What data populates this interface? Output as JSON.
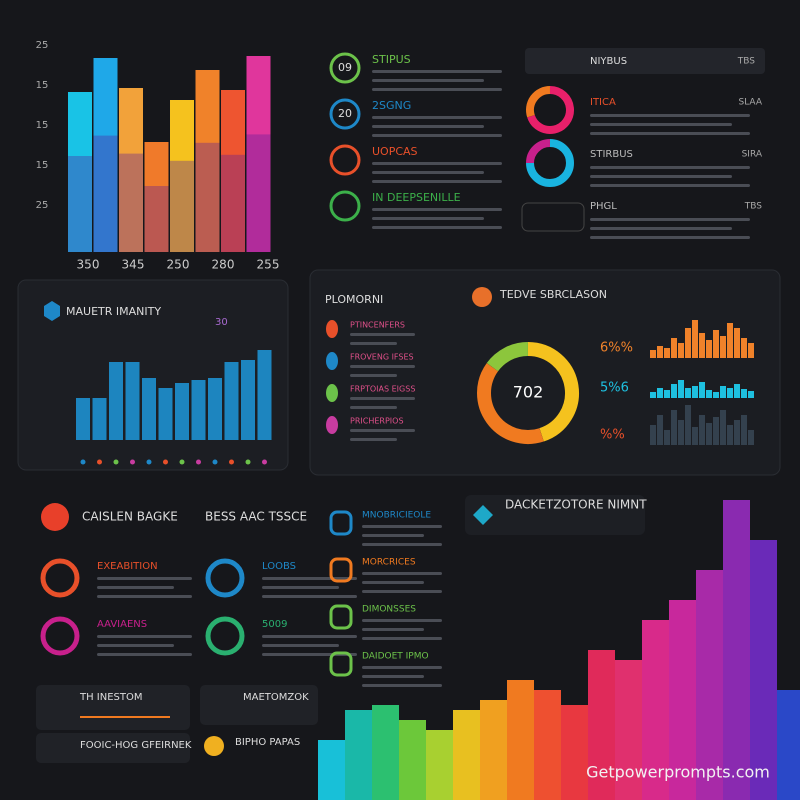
{
  "top_chart": {
    "y_labels": [
      "25",
      "15",
      "15",
      "15",
      "25"
    ],
    "x_labels": [
      "350",
      "345",
      "250",
      "280",
      "255"
    ],
    "values": [
      80,
      97,
      82,
      55,
      76,
      91,
      81,
      98
    ],
    "colors": [
      "#19c3e6",
      "#1fa8e8",
      "#f2a23a",
      "#f07a2a",
      "#f5c21e",
      "#f0822a",
      "#ee5530",
      "#e0369c"
    ]
  },
  "top_list": {
    "items": [
      {
        "badge": "09",
        "title": "STIPUS",
        "color": "#6cc24a"
      },
      {
        "badge": "20",
        "title": "2SGNG",
        "color": "#1e88c8"
      },
      {
        "title": "UOPCAS",
        "color": "#e8502a"
      },
      {
        "title": "IN DEEPSENILLE",
        "color": "#3cb04a"
      }
    ]
  },
  "status_panel": {
    "title": "NIYBUS",
    "code": "TBS",
    "rows": [
      {
        "left": "ITICA",
        "right": "SLAA"
      },
      {
        "left": "STIRBUS",
        "right": "SIRA"
      },
      {
        "left": "PHGL",
        "right": "TBS"
      }
    ],
    "donuts": [
      {
        "values": [
          70,
          30
        ],
        "colors": [
          "#e8206a",
          "#f07a20"
        ]
      },
      {
        "values": [
          75,
          25
        ],
        "colors": [
          "#19b4e0",
          "#c8208c"
        ]
      }
    ]
  },
  "blue_chart": {
    "title": "MAUETR IMANITY",
    "code": "30",
    "values": [
      42,
      42,
      78,
      78,
      62,
      52,
      57,
      60,
      62,
      78,
      80,
      90
    ],
    "color": "#1e90d0"
  },
  "progress_panel": {
    "title": "PLOMORNI",
    "items": [
      {
        "title": "PTINCENFERS",
        "color": "#e8502a"
      },
      {
        "title": "FROVENG IFSES",
        "color": "#1e88c8"
      },
      {
        "title": "FRPTOIAS EIGSS",
        "color": "#6cc24a"
      },
      {
        "title": "PRICHERPIOS",
        "color": "#c83ca0"
      }
    ]
  },
  "donut_panel": {
    "title": "TEDVE SBRCLASON",
    "center": "702",
    "values": [
      45,
      40,
      15
    ],
    "colors": [
      "#f5c21e",
      "#f07a20",
      "#8cc63c"
    ]
  },
  "mini_charts": [
    {
      "label": "6%%",
      "color": "#f0822a",
      "values": [
        8,
        12,
        10,
        20,
        15,
        30,
        38,
        25,
        18,
        28,
        22,
        35,
        30,
        20,
        15
      ]
    },
    {
      "label": "5%6",
      "color": "#1ec0e0",
      "values": [
        6,
        10,
        8,
        14,
        18,
        10,
        12,
        16,
        8,
        6,
        12,
        10,
        14,
        9,
        7
      ]
    },
    {
      "label": "%%",
      "color": "#34414e",
      "values": [
        20,
        30,
        15,
        35,
        25,
        40,
        18,
        30,
        22,
        28,
        35,
        20,
        25,
        30,
        15
      ]
    }
  ],
  "bottom_left": {
    "title": "CAISLEN BAGKE",
    "subtitle": "BESS AAC TSSCE",
    "items": [
      {
        "title": "EXEABITION",
        "color": "#e8502a"
      },
      {
        "title": "AAVIAENS",
        "color": "#c8208c"
      },
      {
        "title": "LOOBS",
        "color": "#1e88c8"
      },
      {
        "title": "5009",
        "color": "#2ab070"
      }
    ],
    "cards": [
      "TH INESTOM",
      "MAETOMZOK",
      "FOOIC-HOG GFEIRNEK",
      "BIPHO PAPAS"
    ]
  },
  "bottom_list": {
    "items": [
      {
        "title": "MNOBRICIEOLE",
        "color": "#1e88c8"
      },
      {
        "title": "MORCRICES",
        "color": "#f07a20"
      },
      {
        "title": "DIMONSSES",
        "color": "#6cc24a"
      },
      {
        "title": "DAIDOET IPMO",
        "color": "#6cc24a"
      }
    ]
  },
  "big_chart": {
    "title": "DACKETZOTORE NIMNT",
    "values": [
      60,
      90,
      95,
      80,
      70,
      90,
      100,
      120,
      110,
      95,
      150,
      140,
      180,
      200,
      230,
      300,
      260,
      110
    ],
    "colors": [
      "#18c0d8",
      "#1ab8a8",
      "#2cc070",
      "#6cc83a",
      "#a8d030",
      "#e8c020",
      "#f0a020",
      "#f07a20",
      "#ee5030",
      "#e83840",
      "#e02a5a",
      "#e0306e",
      "#d82a8a",
      "#c8289c",
      "#a82aa8",
      "#8a2ab0",
      "#6a2ab8",
      "#2a48c8"
    ]
  },
  "watermark": "Getpowerprompts.com"
}
